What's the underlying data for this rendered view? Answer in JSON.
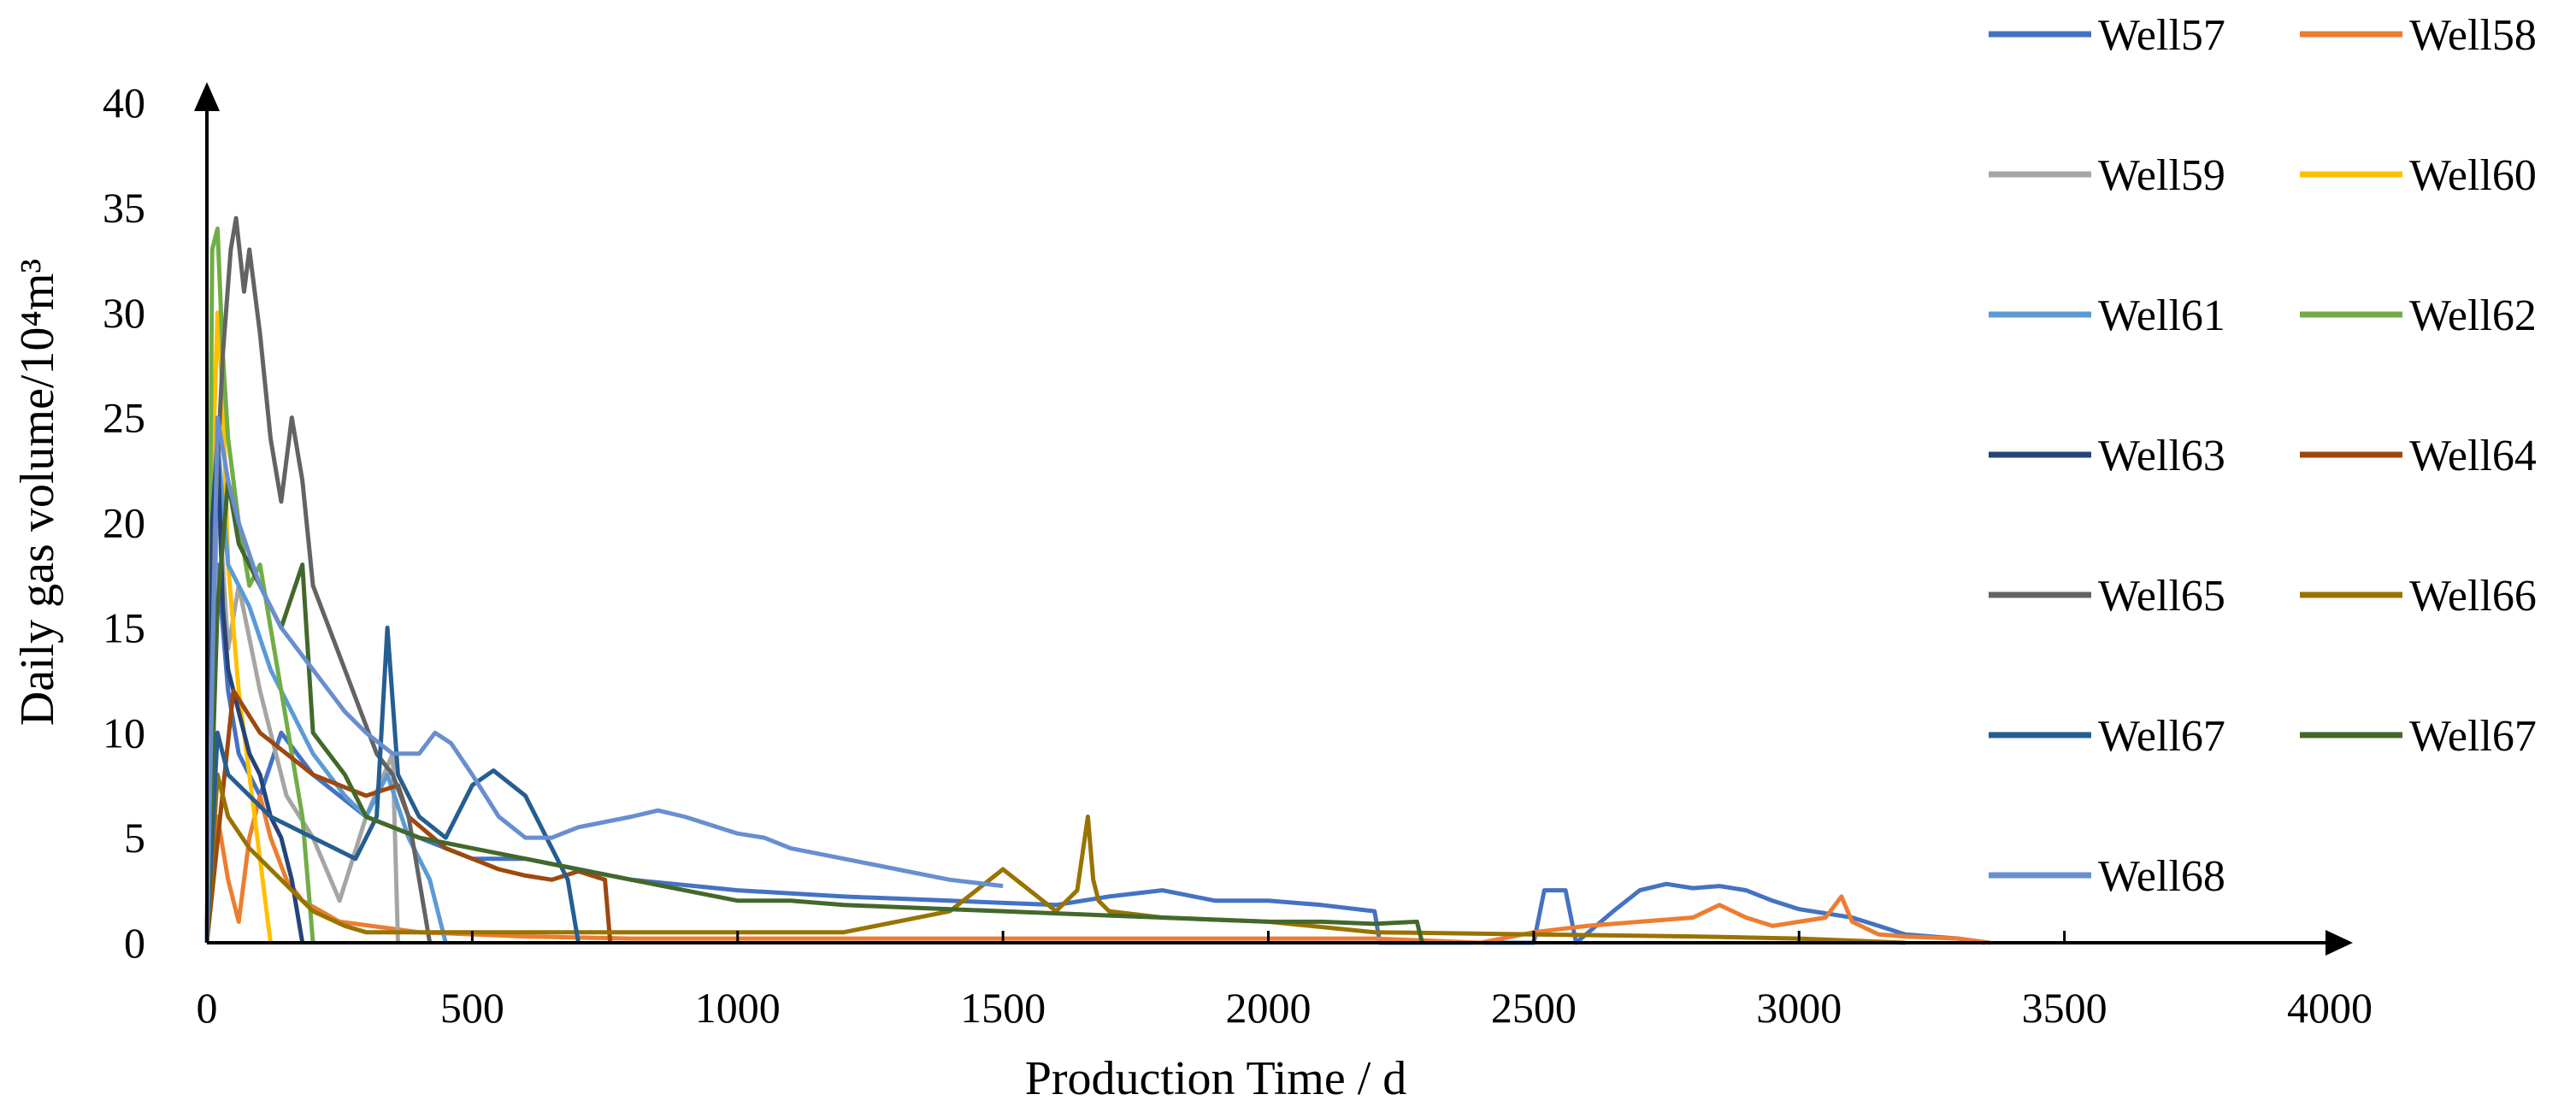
{
  "chart_data": {
    "type": "line",
    "xlabel": "Production Time / d",
    "ylabel": "Daily gas volume/10⁴m³",
    "xlim": [
      0,
      4000
    ],
    "ylim": [
      0,
      40
    ],
    "xticks": [
      0,
      500,
      1000,
      1500,
      2000,
      2500,
      3000,
      3500,
      4000
    ],
    "yticks": [
      0,
      5,
      10,
      15,
      20,
      25,
      30,
      35,
      40
    ],
    "grid": false,
    "legend_position": "right",
    "series": [
      {
        "name": "Well57",
        "color": "#4472C4",
        "x": [
          0,
          20,
          40,
          60,
          100,
          140,
          200,
          300,
          400,
          500,
          600,
          700,
          800,
          1000,
          1200,
          1400,
          1600,
          1700,
          1800,
          1900,
          2000,
          2100,
          2200,
          2210,
          2500,
          2520,
          2560,
          2580,
          2650,
          2700,
          2750,
          2800,
          2850,
          2900,
          2950,
          3000,
          3050,
          3100,
          3150,
          3200,
          3300,
          3350
        ],
        "y": [
          0,
          18,
          12,
          9,
          7,
          10,
          8,
          6,
          5,
          4,
          4,
          3.5,
          3,
          2.5,
          2.2,
          2,
          1.8,
          2.2,
          2.5,
          2,
          2,
          1.8,
          1.5,
          0,
          0,
          2.5,
          2.5,
          0,
          1.5,
          2.5,
          2.8,
          2.6,
          2.7,
          2.5,
          2.0,
          1.6,
          1.4,
          1.2,
          0.8,
          0.4,
          0.2,
          0
        ]
      },
      {
        "name": "Well58",
        "color": "#ED7D31",
        "x": [
          0,
          20,
          40,
          60,
          80,
          100,
          120,
          150,
          180,
          250,
          400,
          600,
          800,
          1000,
          1200,
          1500,
          1800,
          2000,
          2200,
          2400,
          2500,
          2600,
          2700,
          2800,
          2850,
          2900,
          2950,
          3000,
          3050,
          3080,
          3100,
          3150,
          3200,
          3300,
          3360
        ],
        "y": [
          0,
          6,
          3,
          1,
          5,
          7,
          5,
          3,
          2,
          1,
          0.5,
          0.3,
          0.2,
          0.2,
          0.2,
          0.2,
          0.2,
          0.2,
          0.2,
          0,
          0.5,
          0.8,
          1.0,
          1.2,
          1.8,
          1.2,
          0.8,
          1.0,
          1.2,
          2.2,
          1.0,
          0.4,
          0.3,
          0.2,
          0
        ]
      },
      {
        "name": "Well59",
        "color": "#A5A5A5",
        "x": [
          0,
          20,
          40,
          60,
          100,
          150,
          200,
          250,
          300,
          350,
          360
        ],
        "y": [
          0,
          22,
          14,
          17,
          12,
          7,
          5,
          2,
          6,
          9,
          0
        ]
      },
      {
        "name": "Well60",
        "color": "#FFC000",
        "x": [
          0,
          10,
          20,
          30,
          40,
          60,
          80,
          100,
          120
        ],
        "y": [
          0,
          22,
          30,
          26,
          18,
          12,
          8,
          4,
          0
        ]
      },
      {
        "name": "Well61",
        "color": "#5B9BD5",
        "x": [
          0,
          20,
          40,
          80,
          120,
          160,
          200,
          260,
          300,
          340,
          380,
          420,
          450
        ],
        "y": [
          0,
          24,
          18,
          16,
          13,
          11,
          9,
          7,
          6,
          8,
          5,
          3,
          0
        ]
      },
      {
        "name": "Well62",
        "color": "#70AD47",
        "x": [
          0,
          10,
          20,
          30,
          40,
          60,
          80,
          100,
          120,
          140,
          160,
          180,
          200
        ],
        "y": [
          0,
          33,
          34,
          28,
          24,
          20,
          17,
          18,
          15,
          12,
          9,
          6,
          0
        ]
      },
      {
        "name": "Well63",
        "color": "#264478",
        "x": [
          0,
          10,
          20,
          30,
          40,
          60,
          80,
          100,
          120,
          140,
          160,
          180
        ],
        "y": [
          0,
          20,
          24,
          16,
          13,
          11,
          9,
          8,
          6,
          5,
          3,
          0
        ]
      },
      {
        "name": "Well64",
        "color": "#9E480E",
        "x": [
          0,
          50,
          100,
          150,
          200,
          250,
          300,
          360,
          380,
          450,
          500,
          550,
          600,
          650,
          700,
          750,
          760
        ],
        "y": [
          0,
          12,
          10,
          9,
          8,
          7.5,
          7,
          7.5,
          6,
          4.5,
          4,
          3.5,
          3.2,
          3,
          3.4,
          3.0,
          0
        ]
      },
      {
        "name": "Well65",
        "color": "#636363",
        "x": [
          0,
          15,
          30,
          45,
          55,
          70,
          80,
          100,
          120,
          140,
          160,
          180,
          200,
          230,
          260,
          290,
          320,
          350,
          380,
          400,
          420
        ],
        "y": [
          0,
          20,
          28,
          33,
          34.5,
          31,
          33,
          29,
          24,
          21,
          25,
          22,
          17,
          15,
          13,
          11,
          9,
          8,
          6,
          3,
          0
        ]
      },
      {
        "name": "Well66",
        "color": "#997300",
        "x": [
          0,
          20,
          40,
          80,
          120,
          160,
          200,
          260,
          300,
          500,
          700,
          900,
          1200,
          1400,
          1500,
          1600,
          1640,
          1660,
          1670,
          1680,
          1700,
          1800,
          2000,
          2200,
          2500,
          2800,
          3000,
          3100,
          3200
        ],
        "y": [
          0,
          8,
          6,
          4.5,
          3.5,
          2.5,
          1.5,
          0.8,
          0.5,
          0.5,
          0.5,
          0.5,
          0.5,
          1.5,
          3.5,
          1.5,
          2.5,
          6,
          3,
          2,
          1.5,
          1.2,
          1,
          0.5,
          0.4,
          0.3,
          0.2,
          0.1,
          0
        ]
      },
      {
        "name": "Well67",
        "color": "#255E91",
        "x": [
          0,
          20,
          40,
          80,
          120,
          160,
          200,
          240,
          280,
          320,
          340,
          360,
          400,
          450,
          500,
          540,
          560,
          600,
          640,
          680,
          700
        ],
        "y": [
          0,
          10,
          8,
          7,
          6,
          5.5,
          5,
          4.5,
          4,
          6,
          15,
          8,
          6,
          5,
          7.5,
          8.2,
          7.8,
          7,
          5,
          3,
          0
        ]
      },
      {
        "name": "Well67",
        "color": "#43682B",
        "x": [
          0,
          20,
          40,
          60,
          100,
          140,
          180,
          200,
          260,
          300,
          400,
          500,
          600,
          700,
          800,
          900,
          1000,
          1100,
          1200,
          1300,
          1400,
          1500,
          1600,
          1700,
          1800,
          1900,
          2000,
          2100,
          2200,
          2280,
          2290
        ],
        "y": [
          0,
          16,
          22,
          19,
          17,
          15,
          18,
          10,
          8,
          6,
          5,
          4.5,
          4,
          3.5,
          3,
          2.5,
          2,
          2,
          1.8,
          1.7,
          1.6,
          1.5,
          1.4,
          1.3,
          1.2,
          1.1,
          1.0,
          1.0,
          0.9,
          1.0,
          0
        ]
      },
      {
        "name": "Well68",
        "color": "#698ED0",
        "x": [
          0,
          20,
          40,
          60,
          100,
          140,
          200,
          260,
          300,
          350,
          400,
          430,
          460,
          500,
          550,
          600,
          650,
          700,
          800,
          850,
          900,
          1000,
          1050,
          1100,
          1200,
          1300,
          1400,
          1500
        ],
        "y": [
          0,
          25,
          22,
          20,
          17,
          15,
          13,
          11,
          10,
          9,
          9,
          10,
          9.5,
          8,
          6,
          5,
          5,
          5.5,
          6,
          6.3,
          6,
          5.2,
          5,
          4.5,
          4,
          3.5,
          3,
          2.7
        ]
      }
    ]
  }
}
